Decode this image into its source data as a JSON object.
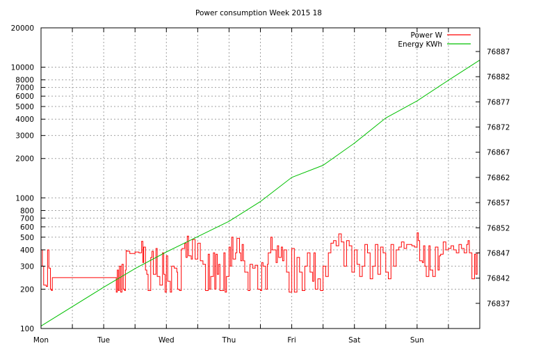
{
  "chart_data": {
    "type": "line",
    "title": "Power consumption Week 2015 18",
    "xlabel": "",
    "ylabel": "",
    "x_unit": "hours since Monday 00:00",
    "xlim": [
      0,
      168
    ],
    "x_ticks": [
      {
        "hour": 0,
        "label": "Mon"
      },
      {
        "hour": 24,
        "label": "Tue"
      },
      {
        "hour": 48,
        "label": "Wed"
      },
      {
        "hour": 72,
        "label": "Thu"
      },
      {
        "hour": 96,
        "label": "Fri"
      },
      {
        "hour": 120,
        "label": "Sat"
      },
      {
        "hour": 144,
        "label": "Sun"
      }
    ],
    "y_left": {
      "scale": "log",
      "ylim": [
        100,
        20000
      ],
      "ticks": [
        100,
        200,
        300,
        400,
        500,
        600,
        700,
        800,
        1000,
        2000,
        3000,
        4000,
        5000,
        6000,
        7000,
        8000,
        10000,
        20000
      ]
    },
    "y_right": {
      "scale": "linear",
      "ylim": [
        76832.0,
        76891.7
      ],
      "ticks": [
        76837,
        76842,
        76847,
        76852,
        76857,
        76862,
        76867,
        76872,
        76877,
        76882,
        76887
      ]
    },
    "grid": true,
    "legend_position": "top-right",
    "series": [
      {
        "name": "Power W",
        "axis": "left",
        "style": "steps",
        "color": "#ff0000",
        "points": [
          [
            0,
            400
          ],
          [
            0.5,
            300
          ],
          [
            1,
            215
          ],
          [
            2,
            210
          ],
          [
            2.5,
            400
          ],
          [
            3,
            290
          ],
          [
            3.6,
            200
          ],
          [
            4,
            195
          ],
          [
            4.3,
            245
          ],
          [
            28.5,
            245
          ],
          [
            28.8,
            190
          ],
          [
            29.2,
            280
          ],
          [
            29.6,
            195
          ],
          [
            30,
            300
          ],
          [
            30.5,
            190
          ],
          [
            31,
            310
          ],
          [
            31.5,
            200
          ],
          [
            32,
            195
          ],
          [
            32.3,
            280
          ],
          [
            32.6,
            395
          ],
          [
            33,
            390
          ],
          [
            34,
            375
          ],
          [
            36,
            385
          ],
          [
            37.5,
            380
          ],
          [
            38.5,
            465
          ],
          [
            39,
            320
          ],
          [
            39.3,
            420
          ],
          [
            40,
            280
          ],
          [
            40.5,
            260
          ],
          [
            41,
            195
          ],
          [
            42,
            350
          ],
          [
            42.5,
            390
          ],
          [
            43,
            260
          ],
          [
            44,
            410
          ],
          [
            44.5,
            250
          ],
          [
            45.5,
            215
          ],
          [
            46.5,
            380
          ],
          [
            47,
            260
          ],
          [
            47.5,
            190
          ],
          [
            48,
            360
          ],
          [
            48.5,
            230
          ],
          [
            49.5,
            190
          ],
          [
            50,
            300
          ],
          [
            51,
            290
          ],
          [
            52,
            270
          ],
          [
            52.3,
            200
          ],
          [
            53,
            195
          ],
          [
            53.7,
            400
          ],
          [
            54,
            410
          ],
          [
            55,
            450
          ],
          [
            55.5,
            350
          ],
          [
            56,
            510
          ],
          [
            56.5,
            360
          ],
          [
            57.5,
            340
          ],
          [
            58,
            480
          ],
          [
            59,
            340
          ],
          [
            60,
            450
          ],
          [
            61,
            330
          ],
          [
            62,
            310
          ],
          [
            63,
            195
          ],
          [
            64,
            370
          ],
          [
            64.5,
            200
          ],
          [
            65,
            250
          ],
          [
            66,
            380
          ],
          [
            66.5,
            200
          ],
          [
            67,
            370
          ],
          [
            67.5,
            260
          ],
          [
            68,
            310
          ],
          [
            68.5,
            195
          ],
          [
            70,
            380
          ],
          [
            70.5,
            190
          ],
          [
            71,
            250
          ],
          [
            72,
            420
          ],
          [
            72.5,
            300
          ],
          [
            73,
            500
          ],
          [
            73.5,
            340
          ],
          [
            74.5,
            380
          ],
          [
            75,
            490
          ],
          [
            76,
            380
          ],
          [
            76.5,
            330
          ],
          [
            77,
            440
          ],
          [
            77.5,
            330
          ],
          [
            78,
            270
          ],
          [
            79.3,
            195
          ],
          [
            80,
            310
          ],
          [
            81,
            290
          ],
          [
            82,
            305
          ],
          [
            83,
            200
          ],
          [
            84,
            195
          ],
          [
            84.5,
            320
          ],
          [
            85,
            300
          ],
          [
            86,
            200
          ],
          [
            86.7,
            310
          ],
          [
            87,
            380
          ],
          [
            88,
            500
          ],
          [
            88.5,
            400
          ],
          [
            90,
            320
          ],
          [
            90.5,
            430
          ],
          [
            91,
            350
          ],
          [
            92,
            420
          ],
          [
            92.5,
            330
          ],
          [
            93,
            400
          ],
          [
            94,
            270
          ],
          [
            95,
            190
          ],
          [
            96,
            410
          ],
          [
            97,
            190
          ],
          [
            98,
            350
          ],
          [
            99,
            270
          ],
          [
            100,
            195
          ],
          [
            101,
            300
          ],
          [
            102,
            380
          ],
          [
            103,
            270
          ],
          [
            104,
            230
          ],
          [
            104.5,
            380
          ],
          [
            105,
            200
          ],
          [
            106,
            240
          ],
          [
            107,
            195
          ],
          [
            108,
            300
          ],
          [
            109,
            250
          ],
          [
            110,
            380
          ],
          [
            111,
            450
          ],
          [
            112,
            470
          ],
          [
            113,
            430
          ],
          [
            114,
            530
          ],
          [
            115,
            460
          ],
          [
            116,
            300
          ],
          [
            117,
            470
          ],
          [
            118,
            430
          ],
          [
            119,
            270
          ],
          [
            120,
            400
          ],
          [
            121,
            310
          ],
          [
            122,
            250
          ],
          [
            123,
            300
          ],
          [
            124,
            440
          ],
          [
            125,
            380
          ],
          [
            126,
            240
          ],
          [
            127,
            300
          ],
          [
            128,
            440
          ],
          [
            129,
            260
          ],
          [
            130,
            420
          ],
          [
            131,
            380
          ],
          [
            132,
            270
          ],
          [
            133,
            240
          ],
          [
            134,
            440
          ],
          [
            135,
            300
          ],
          [
            136,
            400
          ],
          [
            137,
            420
          ],
          [
            138,
            460
          ],
          [
            139,
            410
          ],
          [
            140,
            440
          ],
          [
            142,
            430
          ],
          [
            143,
            420
          ],
          [
            144,
            540
          ],
          [
            144.5,
            470
          ],
          [
            145,
            330
          ],
          [
            146,
            320
          ],
          [
            146.5,
            430
          ],
          [
            147,
            300
          ],
          [
            147.5,
            250
          ],
          [
            148.5,
            430
          ],
          [
            149,
            280
          ],
          [
            150,
            250
          ],
          [
            151,
            420
          ],
          [
            152,
            280
          ],
          [
            152.5,
            360
          ],
          [
            153,
            370
          ],
          [
            154,
            460
          ],
          [
            155,
            400
          ],
          [
            156,
            410
          ],
          [
            157,
            430
          ],
          [
            158,
            400
          ],
          [
            159,
            380
          ],
          [
            160,
            440
          ],
          [
            161,
            410
          ],
          [
            162,
            380
          ],
          [
            163,
            440
          ],
          [
            163.5,
            470
          ],
          [
            164,
            380
          ],
          [
            165,
            240
          ],
          [
            166,
            370
          ],
          [
            166.5,
            260
          ],
          [
            167,
            380
          ],
          [
            168,
            280
          ]
        ]
      },
      {
        "name": "Energy KWh",
        "axis": "right",
        "style": "line",
        "color": "#00c000",
        "points": [
          [
            0,
            76832.5
          ],
          [
            24,
            76840.2
          ],
          [
            36,
            76843.9
          ],
          [
            48,
            76847.2
          ],
          [
            72,
            76853.3
          ],
          [
            84,
            76857.2
          ],
          [
            96,
            76862.0
          ],
          [
            108,
            76864.4
          ],
          [
            120,
            76868.8
          ],
          [
            132,
            76873.8
          ],
          [
            144,
            76877.2
          ],
          [
            156,
            76881.3
          ],
          [
            168,
            76885.3
          ]
        ]
      }
    ]
  }
}
